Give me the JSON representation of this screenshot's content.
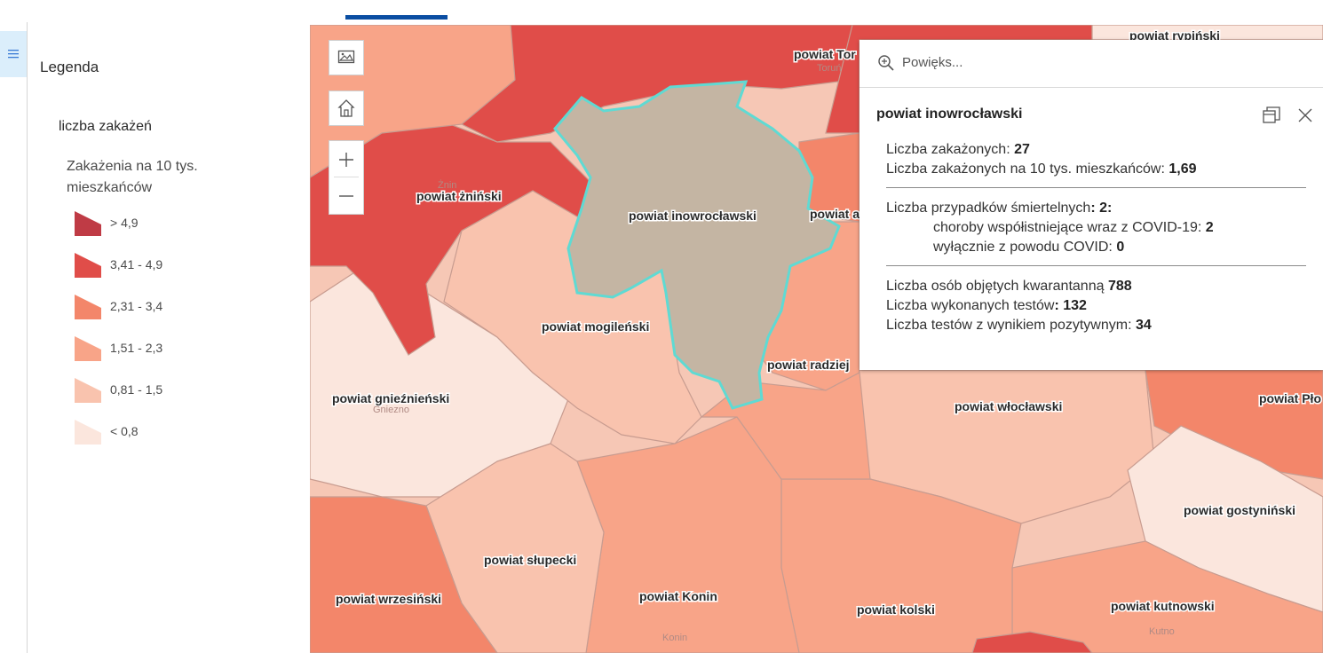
{
  "legend": {
    "title": "Legenda",
    "layer_title": "liczba zakażeń",
    "field_label": "Zakażenia na 10 tys. mieszkańców",
    "classes": [
      {
        "label": "> 4,9",
        "color": "#bf3b45"
      },
      {
        "label": "3,41 - 4,9",
        "color": "#e04d49"
      },
      {
        "label": "2,31 - 3,4",
        "color": "#f3866a"
      },
      {
        "label": "1,51 - 2,3",
        "color": "#f8a488"
      },
      {
        "label": "0,81 - 1,5",
        "color": "#f9c3ae"
      },
      {
        "label": "< 0,8",
        "color": "#fbe6dd"
      }
    ]
  },
  "map": {
    "selected_color": "#c4b5a3",
    "selected_outline": "#5fdad3",
    "labels": {
      "inowroclawski": "powiat inowrocławski",
      "zninski": "powiat żniński",
      "mogilenski": "powiat mogileński",
      "gnieznienski": "powiat gnieźnieński",
      "wloclawski": "powiat włocławski",
      "slupecki": "powiat słupecki",
      "wrzesinski": "powiat wrzesiński",
      "konin": "powiat Konin",
      "kolski": "powiat kolski",
      "kutnowski": "powiat kutnowski",
      "gostyninski": "powiat gostyniński",
      "torun": "powiat Tor",
      "rypinski": "powiat rypiński",
      "radziej": "powiat radziej",
      "aleks": "powiat a",
      "plo": "powiat Pło"
    },
    "city_labels": {
      "znin": "Żnin",
      "gniezno": "Gniezno",
      "konin": "Konin",
      "kutno": "Kutno",
      "torun": "Toruń"
    }
  },
  "popup": {
    "search_placeholder": "Powięks...",
    "title": "powiat inowrocławski",
    "infections_label": "Liczba zakażonych:",
    "infections_value": "27",
    "per10k_label": "Liczba zakażonych na 10 tys. mieszkańców:",
    "per10k_value": "1,69",
    "deaths_label": "Liczba przypadków śmiertelnych",
    "deaths_value": ": 2:",
    "comorb_label": "choroby współistniejące wraz z COVID-19:",
    "comorb_value": "2",
    "covid_only_label": "wyłącznie z powodu COVID:",
    "covid_only_value": "0",
    "quarantine_label": "Liczba osób objętych kwarantanną",
    "quarantine_value": "788",
    "tests_label": "Liczba wykonanych testów",
    "tests_value": ": 132",
    "positive_label": "Liczba testów z wynikiem pozytywnym:",
    "positive_value": "34"
  }
}
